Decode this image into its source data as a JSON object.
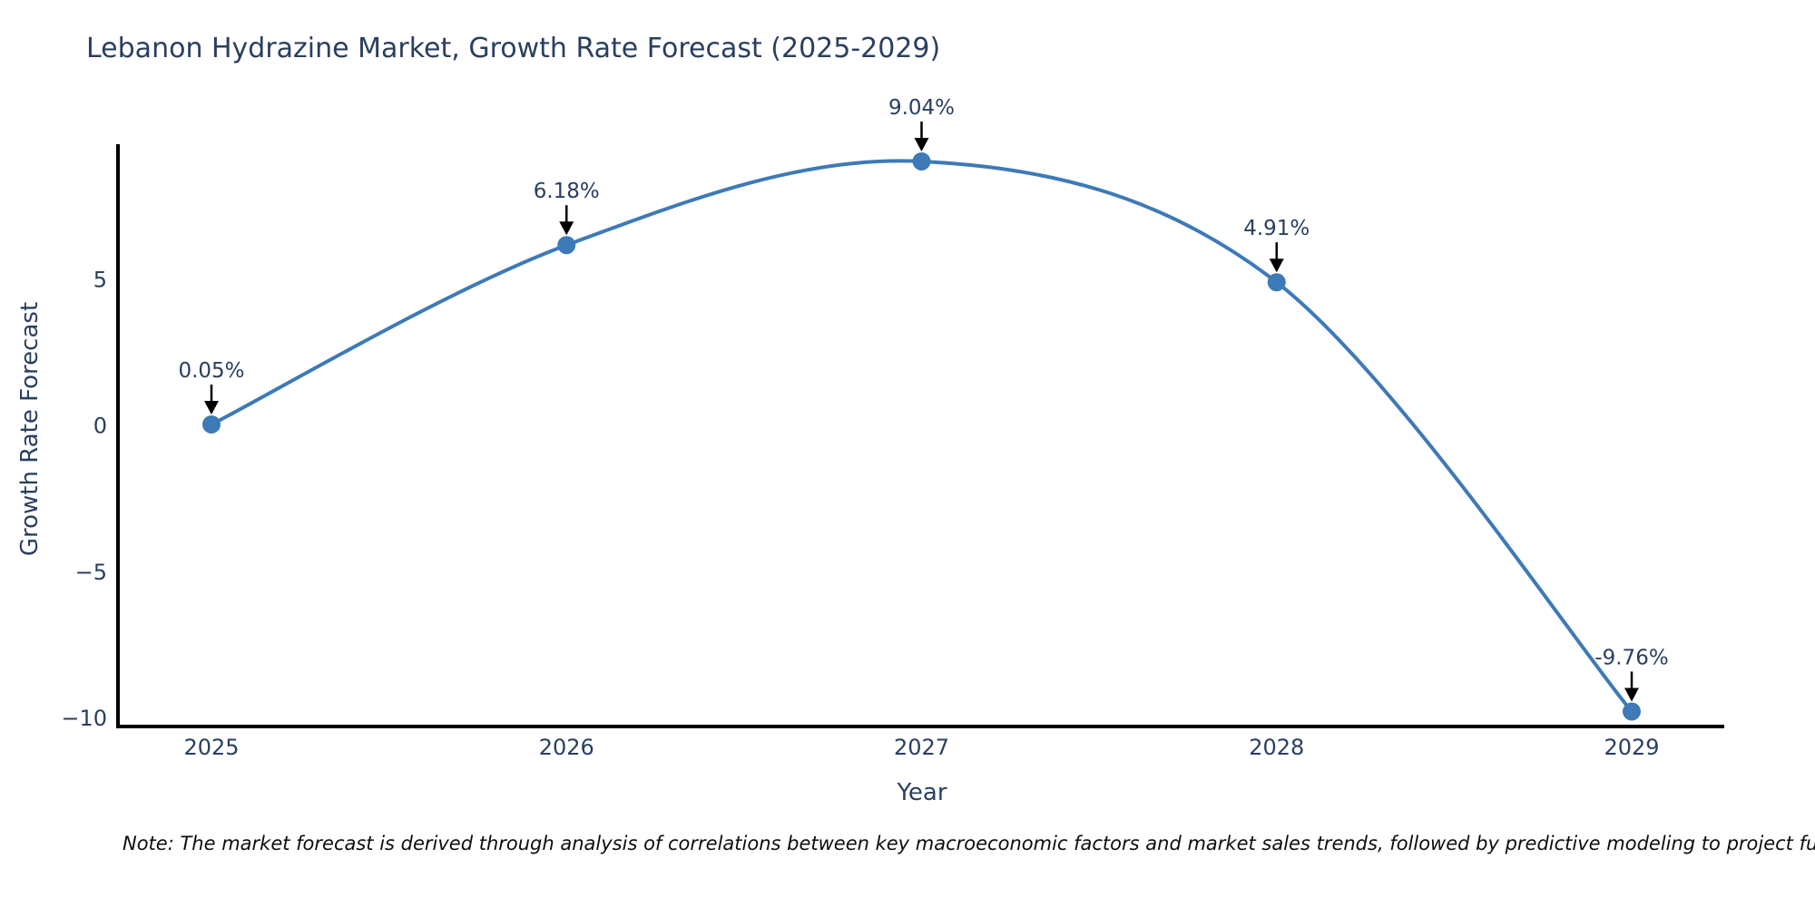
{
  "title": "Lebanon Hydrazine Market, Growth Rate Forecast (2025-2029)",
  "note": "Note: The market forecast is derived through analysis of correlations between key macroeconomic factors and market sales trends, followed by predictive modeling to project future sales.",
  "chart_data": {
    "type": "line",
    "line_shape": "spline",
    "title": "Lebanon Hydrazine Market, Growth Rate Forecast (2025-2029)",
    "xlabel": "Year",
    "ylabel": "Growth Rate Forecast",
    "categories": [
      "2025",
      "2026",
      "2027",
      "2028",
      "2029"
    ],
    "values": [
      0.05,
      6.18,
      9.04,
      4.91,
      -9.76
    ],
    "point_labels": [
      "0.05%",
      "6.18%",
      "9.04%",
      "4.91%",
      "-9.76%"
    ],
    "y_ticks": [
      5,
      0,
      -5,
      -10
    ],
    "ylim": [
      -10.35,
      9.65
    ],
    "grid": false,
    "legend": "none",
    "markers": true,
    "annotations_arrow": true,
    "colors": {
      "line": "#3d7ab7",
      "marker": "#3d7ab7",
      "arrow": "#000000",
      "axis_line": "#000000",
      "text": "#2a3f5f",
      "background": "#ffffff"
    }
  }
}
